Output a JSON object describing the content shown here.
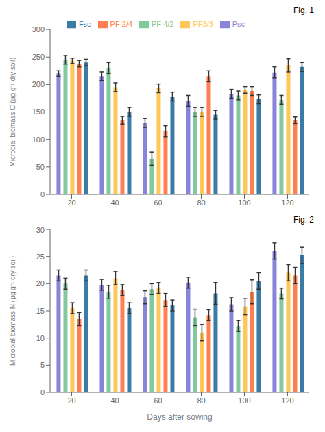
{
  "chart_data": [
    {
      "type": "bar",
      "annotation": "Fig. 1",
      "legend": "top",
      "grid": false,
      "categories": [
        20,
        40,
        60,
        80,
        100,
        120
      ],
      "ylabel": "Microbial biomass C (μg g⁻¹ dry soil)",
      "ylim": [
        0,
        300
      ],
      "yticks": [
        0,
        50,
        100,
        150,
        200,
        250,
        300
      ],
      "series": [
        {
          "name": "Psc",
          "color": "#8884d8",
          "values": [
            220,
            215,
            130,
            170,
            183,
            222
          ],
          "errors": [
            5,
            8,
            8,
            10,
            8,
            10
          ]
        },
        {
          "name": "PF 4/2",
          "color": "#82ca9d",
          "values": [
            245,
            230,
            65,
            150,
            180,
            172
          ],
          "errors": [
            8,
            10,
            12,
            8,
            8,
            8
          ]
        },
        {
          "name": "PF3/3",
          "color": "#ffc658",
          "values": [
            243,
            195,
            193,
            150,
            190,
            235
          ],
          "errors": [
            5,
            8,
            8,
            8,
            6,
            12
          ]
        },
        {
          "name": "PF 2/4",
          "color": "#ff7f50",
          "values": [
            238,
            135,
            115,
            215,
            188,
            135
          ],
          "errors": [
            6,
            7,
            10,
            10,
            8,
            6
          ]
        },
        {
          "name": "Fsc",
          "color": "#3a7ca5",
          "values": [
            240,
            150,
            178,
            145,
            173,
            232
          ],
          "errors": [
            6,
            8,
            8,
            8,
            8,
            8
          ]
        }
      ]
    },
    {
      "type": "bar",
      "annotation": "Fig. 2",
      "grid": false,
      "categories": [
        20,
        40,
        60,
        80,
        100,
        120
      ],
      "xlabel": "Days after sowing",
      "ylabel": "Microbial biomass N (μg g⁻¹ dry soil)",
      "ylim": [
        0,
        30
      ],
      "yticks": [
        0,
        5,
        10,
        15,
        20,
        25,
        30
      ],
      "series": [
        {
          "name": "Psc",
          "color": "#8884d8",
          "values": [
            21.5,
            19.8,
            17.5,
            20.2,
            16.2,
            26.0
          ],
          "errors": [
            1.0,
            1.0,
            1.2,
            1.0,
            1.2,
            1.5
          ]
        },
        {
          "name": "PF 4/2",
          "color": "#82ca9d",
          "values": [
            20.0,
            18.5,
            19.0,
            13.8,
            12.2,
            18.2
          ],
          "errors": [
            1.0,
            1.2,
            1.0,
            1.5,
            1.0,
            1.0
          ]
        },
        {
          "name": "PF3/3",
          "color": "#ffc658",
          "values": [
            15.5,
            21.0,
            19.2,
            11.0,
            15.8,
            22.0
          ],
          "errors": [
            1.0,
            1.2,
            1.0,
            1.5,
            1.5,
            1.5
          ]
        },
        {
          "name": "PF 2/4",
          "color": "#ff7f50",
          "values": [
            13.5,
            18.8,
            17.0,
            14.2,
            18.5,
            21.5
          ],
          "errors": [
            1.2,
            1.0,
            1.2,
            1.0,
            2.2,
            1.5
          ]
        },
        {
          "name": "Fsc",
          "color": "#3a7ca5",
          "values": [
            21.5,
            15.5,
            16.0,
            18.2,
            20.5,
            25.2
          ],
          "errors": [
            1.0,
            1.0,
            1.0,
            2.0,
            1.5,
            1.5
          ]
        }
      ]
    }
  ]
}
